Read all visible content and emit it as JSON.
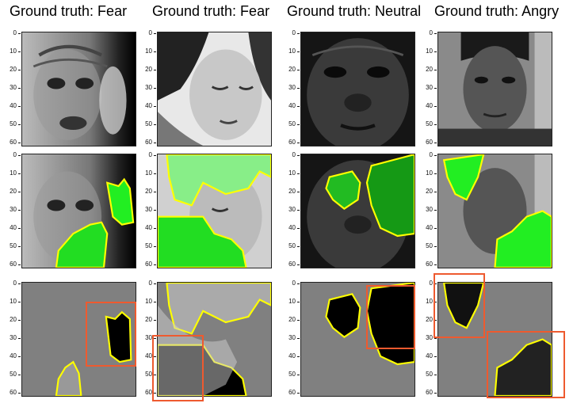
{
  "columns": [
    {
      "title": "Ground truth: Fear"
    },
    {
      "title": "Ground truth: Fear"
    },
    {
      "title": "Ground truth: Neutral"
    },
    {
      "title": "Ground truth: Angry"
    }
  ],
  "y_ticks": [
    "0",
    "10",
    "20",
    "30",
    "40",
    "50",
    "60"
  ],
  "colors": {
    "mask_gray": "#808080",
    "highlight_green": "#22ee22",
    "boundary_yellow": "#ffff00",
    "box_red": "#ee5a2f"
  }
}
